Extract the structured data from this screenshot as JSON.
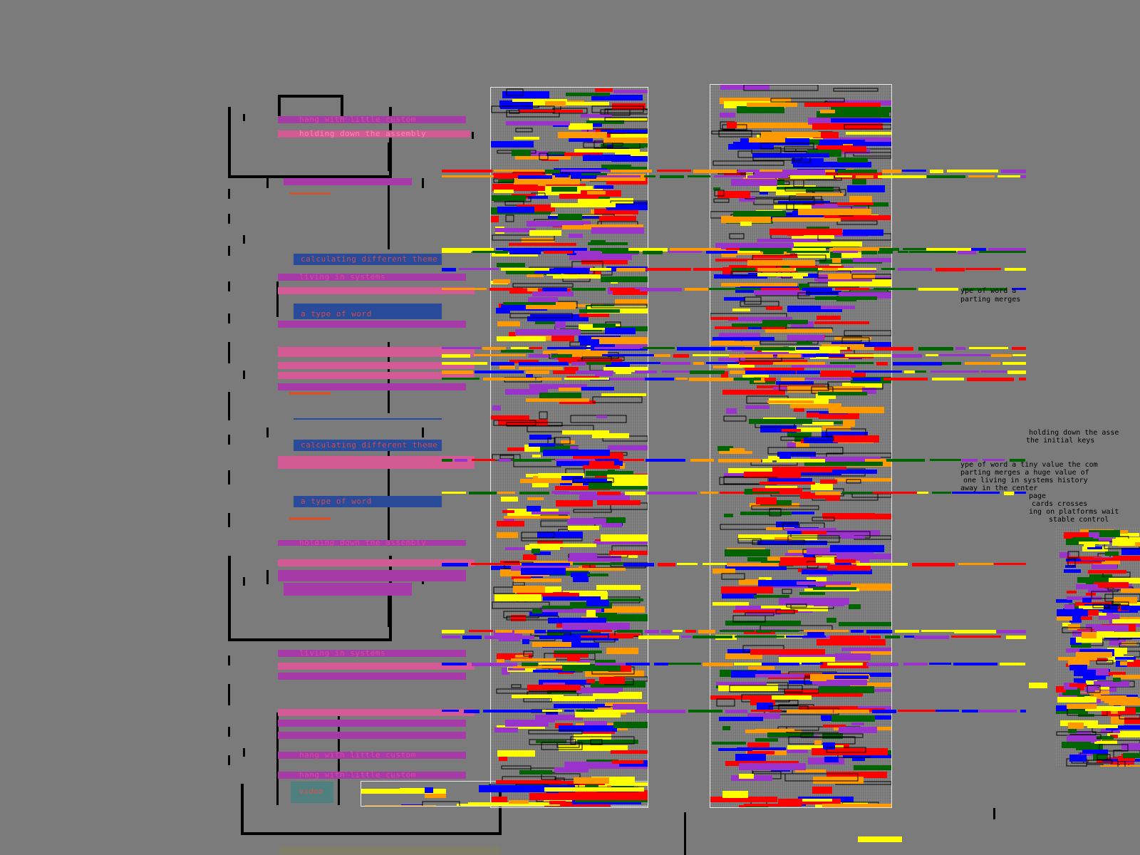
{
  "app": {
    "title": ""
  },
  "left_labels": {
    "l1": "hang with little custom",
    "l2": "holding down the assembly",
    "l3": "calculating different theme",
    "l4": "living in systems",
    "l5": "a type of word",
    "l6": "calculating different theme",
    "l7": "a type of word",
    "l8": "holding down the assembly",
    "l9": "living in systems",
    "l10": "hang with little custom",
    "l11": "hang with little custom",
    "l12": "video"
  },
  "right_text": {
    "r1": "ype of word a",
    "r2": "parting merges",
    "r3": "holding down the asse",
    "r4": "the initial keys",
    "r5": "ype of word a tiny value the com",
    "r6": "parting merges a huge value of",
    "r7": "one living in systems history",
    "r8": "away in the center",
    "r9": "page",
    "r10": "cards crosses",
    "r11": "ing on platforms wait",
    "r12": "stable control"
  },
  "colors": {
    "background": "#7b7b7b",
    "magenta": "#a63aa6",
    "pink": "#d45a96",
    "navy": "#2a4a9a",
    "teal": "#4f7f7f",
    "red": "#ff0000",
    "blue": "#0000ff",
    "yellow": "#ffff00",
    "orange": "#ff9900",
    "green": "#006400",
    "purple": "#9933cc"
  }
}
